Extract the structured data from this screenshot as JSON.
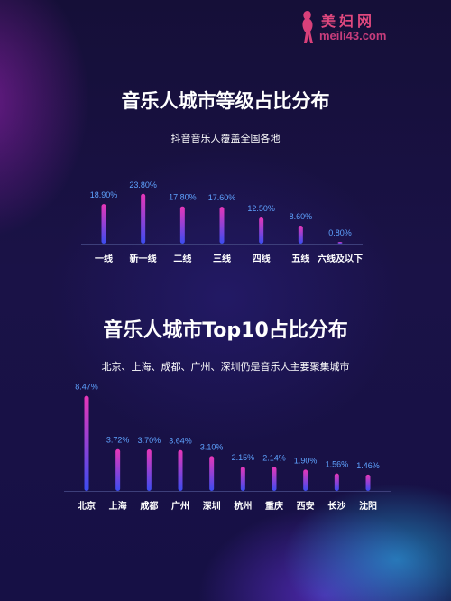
{
  "watermark": {
    "name_cn": "美妇网",
    "url": "meili43.com"
  },
  "colors": {
    "bar_top": "#e836b8",
    "bar_bottom": "#3b4cf0",
    "value_label": "#5fa3ff",
    "axis": "#3d3f7a"
  },
  "chart_data": [
    {
      "type": "bar",
      "title": "音乐人城市等级占比分布",
      "subtitle": "抖音音乐人覆盖全国各地",
      "categories": [
        "一线",
        "新一线",
        "二线",
        "三线",
        "四线",
        "五线",
        "六线及以下"
      ],
      "values": [
        18.9,
        23.8,
        17.8,
        17.6,
        12.5,
        8.6,
        0.8
      ],
      "value_labels": [
        "18.90%",
        "23.80%",
        "17.80%",
        "17.60%",
        "12.50%",
        "8.60%",
        "0.80%"
      ],
      "unit": "%",
      "ylim": [
        0,
        25
      ],
      "grid": false
    },
    {
      "type": "bar",
      "title": "音乐人城市Top10占比分布",
      "subtitle": "北京、上海、成都、广州、深圳仍是音乐人主要聚集城市",
      "categories": [
        "北京",
        "上海",
        "成都",
        "广州",
        "深圳",
        "杭州",
        "重庆",
        "西安",
        "长沙",
        "沈阳"
      ],
      "values": [
        8.47,
        3.72,
        3.7,
        3.64,
        3.1,
        2.15,
        2.14,
        1.9,
        1.56,
        1.46
      ],
      "value_labels": [
        "8.47%",
        "3.72%",
        "3.70%",
        "3.64%",
        "3.10%",
        "2.15%",
        "2.14%",
        "1.90%",
        "1.56%",
        "1.46%"
      ],
      "unit": "%",
      "ylim": [
        0,
        9
      ],
      "grid": false
    }
  ]
}
